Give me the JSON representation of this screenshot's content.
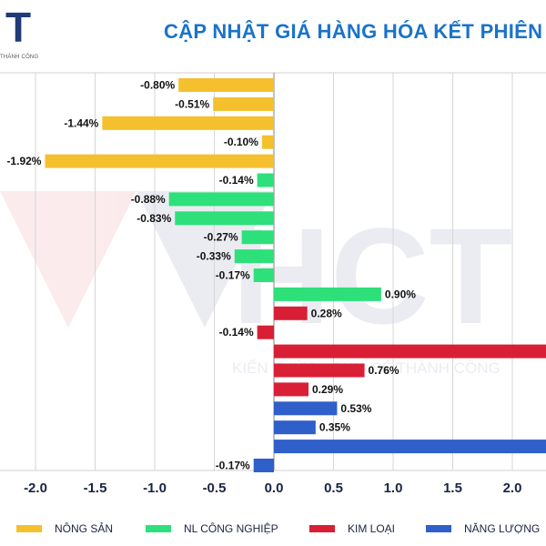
{
  "logo": {
    "mark": "T",
    "subtitle": "THÀNH CÔNG"
  },
  "watermark": {
    "letters": "HCT",
    "tagline": "KIẾN THỨC • CHIA SẺ THÀNH CÔNG"
  },
  "chart_data": {
    "type": "bar",
    "orientation": "horizontal",
    "title": "CẬP NHẬT GIÁ HÀNG HÓA KẾT PHIÊN",
    "xlabel": "",
    "ylabel": "",
    "xlim": [
      -2.3,
      2.3
    ],
    "x_ticks": [
      -2.0,
      -1.5,
      -1.0,
      -0.5,
      0.0,
      0.5,
      1.0,
      1.5,
      2.0
    ],
    "x_tick_labels": [
      "-2.0",
      "-1.5",
      "-1.0",
      "-0.5",
      "0.0",
      "0.5",
      "1.0",
      "1.5",
      "2.0"
    ],
    "grid": true,
    "legend_position": "bottom",
    "series": [
      {
        "name": "NÔNG SẢN",
        "color": "#f5c02e"
      },
      {
        "name": "NL CÔNG NGHIỆP",
        "color": "#2ee07a"
      },
      {
        "name": "KIM LOẠI",
        "color": "#d81f36"
      },
      {
        "name": "NĂNG LƯỢNG",
        "color": "#2f5fc8"
      }
    ],
    "bars": [
      {
        "series": 0,
        "value": -0.8,
        "label": "-0.80%"
      },
      {
        "series": 0,
        "value": -0.51,
        "label": "-0.51%"
      },
      {
        "series": 0,
        "value": -1.44,
        "label": "-1.44%"
      },
      {
        "series": 0,
        "value": -0.1,
        "label": "-0.10%"
      },
      {
        "series": 0,
        "value": -1.92,
        "label": "-1.92%"
      },
      {
        "series": 1,
        "value": -0.14,
        "label": "-0.14%"
      },
      {
        "series": 1,
        "value": -0.88,
        "label": "-0.88%"
      },
      {
        "series": 1,
        "value": -0.83,
        "label": "-0.83%"
      },
      {
        "series": 1,
        "value": -0.27,
        "label": "-0.27%"
      },
      {
        "series": 1,
        "value": -0.33,
        "label": "-0.33%"
      },
      {
        "series": 1,
        "value": -0.17,
        "label": "-0.17%"
      },
      {
        "series": 1,
        "value": 0.9,
        "label": "0.90%"
      },
      {
        "series": 2,
        "value": 0.28,
        "label": "0.28%"
      },
      {
        "series": 2,
        "value": -0.14,
        "label": "-0.14%"
      },
      {
        "series": 2,
        "value": 2.3,
        "label": ""
      },
      {
        "series": 2,
        "value": 0.76,
        "label": "0.76%"
      },
      {
        "series": 2,
        "value": 0.29,
        "label": "0.29%"
      },
      {
        "series": 3,
        "value": 0.53,
        "label": "0.53%"
      },
      {
        "series": 3,
        "value": 0.35,
        "label": "0.35%"
      },
      {
        "series": 3,
        "value": 2.3,
        "label": ""
      },
      {
        "series": 3,
        "value": -0.17,
        "label": "-0.17%"
      }
    ]
  }
}
